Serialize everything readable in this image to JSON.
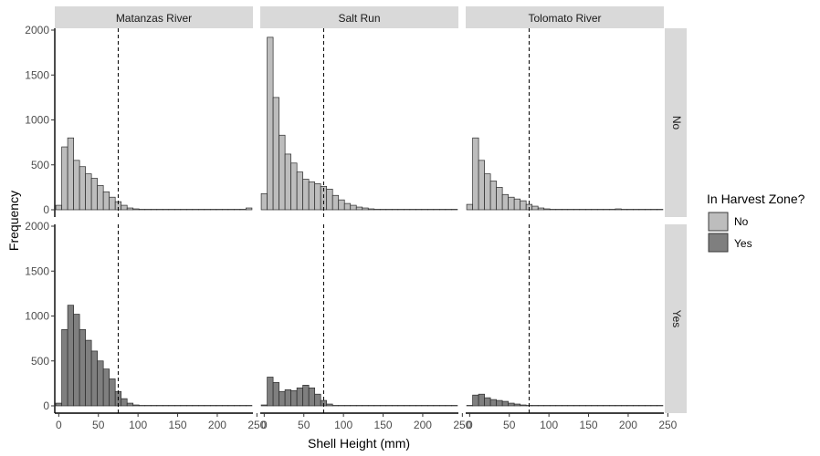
{
  "chart_data": {
    "type": "bar",
    "title": "",
    "xlabel": "Shell Height (mm)",
    "ylabel": "Frequency",
    "xlim": [
      -5,
      245
    ],
    "ylim": [
      0,
      2000
    ],
    "x_ticks": [
      0,
      50,
      100,
      150,
      200,
      250
    ],
    "y_ticks": [
      0,
      500,
      1000,
      1500,
      2000
    ],
    "bin_width": 7.5,
    "bin_starts": [
      -3.75,
      3.75,
      11.25,
      18.75,
      26.25,
      33.75,
      41.25,
      48.75,
      56.25,
      63.75,
      71.25,
      78.75,
      86.25,
      93.75,
      101.25,
      108.75,
      116.25,
      123.75,
      131.25,
      138.75,
      146.25,
      153.75,
      161.25,
      168.75,
      176.25,
      183.75,
      191.25,
      198.75,
      206.25,
      213.75,
      221.25,
      228.75,
      236.25
    ],
    "reference_line_x": 75,
    "col_facets": [
      "Matanzas River",
      "Salt Run",
      "Tolomato River"
    ],
    "row_facets": [
      "No",
      "Yes"
    ],
    "legend": {
      "title": "In Harvest Zone?",
      "position": "right",
      "entries": [
        {
          "label": "No",
          "color": "#bdbdbd"
        },
        {
          "label": "Yes",
          "color": "#7f7f7f"
        }
      ]
    },
    "series": [
      {
        "name": "No",
        "facet_col": "Matanzas River",
        "facet_row": "No",
        "color": "#bdbdbd",
        "values": [
          50,
          700,
          800,
          550,
          480,
          400,
          350,
          270,
          200,
          140,
          90,
          50,
          20,
          10,
          5,
          2,
          1,
          0,
          0,
          0,
          0,
          0,
          0,
          0,
          0,
          0,
          0,
          0,
          0,
          0,
          0,
          0,
          20
        ]
      },
      {
        "name": "No",
        "facet_col": "Salt Run",
        "facet_row": "No",
        "color": "#bdbdbd",
        "values": [
          180,
          1920,
          1250,
          830,
          620,
          520,
          420,
          340,
          310,
          290,
          260,
          230,
          160,
          110,
          70,
          50,
          30,
          20,
          10,
          5,
          2,
          1,
          0,
          0,
          0,
          0,
          0,
          0,
          0,
          0,
          0,
          0,
          0
        ]
      },
      {
        "name": "No",
        "facet_col": "Tolomato River",
        "facet_row": "No",
        "color": "#bdbdbd",
        "values": [
          60,
          800,
          550,
          400,
          320,
          250,
          170,
          140,
          120,
          100,
          60,
          40,
          20,
          10,
          5,
          3,
          2,
          1,
          0,
          0,
          0,
          0,
          0,
          0,
          0,
          10,
          0,
          0,
          0,
          0,
          0,
          0,
          0
        ]
      },
      {
        "name": "Yes",
        "facet_col": "Matanzas River",
        "facet_row": "Yes",
        "color": "#7f7f7f",
        "values": [
          30,
          850,
          1120,
          1020,
          850,
          730,
          610,
          500,
          410,
          300,
          160,
          80,
          30,
          10,
          2,
          1,
          0,
          0,
          0,
          0,
          0,
          0,
          0,
          0,
          0,
          0,
          0,
          0,
          0,
          0,
          0,
          0,
          0
        ]
      },
      {
        "name": "Yes",
        "facet_col": "Salt Run",
        "facet_row": "Yes",
        "color": "#7f7f7f",
        "values": [
          10,
          320,
          260,
          160,
          180,
          170,
          200,
          230,
          200,
          130,
          60,
          20,
          5,
          2,
          1,
          0,
          0,
          0,
          0,
          0,
          0,
          0,
          0,
          0,
          0,
          0,
          0,
          0,
          0,
          0,
          0,
          0,
          0
        ]
      },
      {
        "name": "Yes",
        "facet_col": "Tolomato River",
        "facet_row": "Yes",
        "color": "#7f7f7f",
        "values": [
          5,
          120,
          130,
          90,
          70,
          60,
          50,
          30,
          20,
          10,
          5,
          2,
          1,
          0,
          0,
          0,
          0,
          0,
          0,
          0,
          0,
          0,
          0,
          0,
          0,
          0,
          0,
          0,
          0,
          0,
          0,
          0,
          0
        ]
      }
    ]
  }
}
